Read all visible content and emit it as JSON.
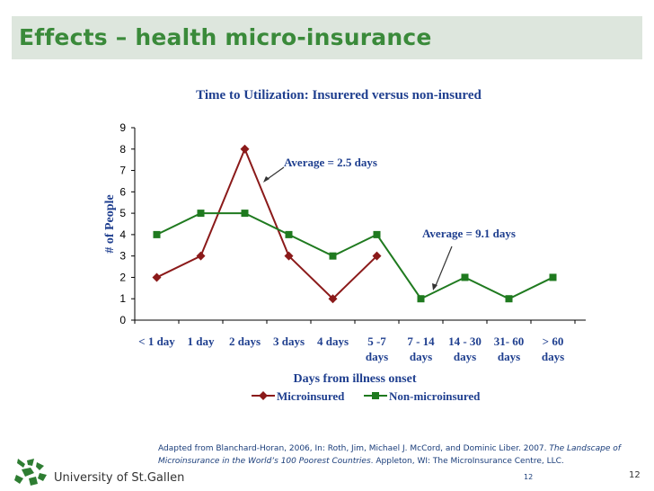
{
  "slide": {
    "title": "Effects – health micro-insurance",
    "citation_prefix": "Adapted from Blanchard-Horan, 2006, In: Roth, Jim, Michael J. McCord, and Dominic Liber. 2007.",
    "citation_title": "The Landscape of Microinsurance in the World’s 100 Poorest Countries",
    "citation_suffix": ". Appleton, WI: The MicroInsurance Centre, LLC.",
    "university": "University of St.Gallen",
    "page_small": "12",
    "page": "12"
  },
  "colors": {
    "title_green": "#3a8a3a",
    "micro": "#8b1a1a",
    "non_micro": "#1f7a1f",
    "text_blue": "#1f3f8f",
    "title_bar": "#dde6dd"
  },
  "chart_data": {
    "type": "line",
    "title": "Time to Utilization: Insurered versus non-insured",
    "xlabel": "Days from illness onset",
    "ylabel": "# of People",
    "ylim": [
      0,
      9
    ],
    "yticks": [
      "0",
      "1",
      "2",
      "3",
      "4",
      "5",
      "6",
      "7",
      "8",
      "9"
    ],
    "categories": [
      [
        "< 1 day"
      ],
      [
        "1 day"
      ],
      [
        "2 days"
      ],
      [
        "3 days"
      ],
      [
        "4 days"
      ],
      [
        "5 -7",
        "days"
      ],
      [
        "7 - 14",
        "days"
      ],
      [
        "14 - 30",
        "days"
      ],
      [
        "31- 60",
        "days"
      ],
      [
        "> 60",
        "days"
      ]
    ],
    "series": [
      {
        "name": "Microinsured",
        "marker": "diamond",
        "values": [
          2,
          3,
          8,
          3,
          1,
          3,
          null,
          null,
          null,
          null
        ]
      },
      {
        "name": "Non-microinsured",
        "marker": "square",
        "values": [
          4,
          5,
          5,
          4,
          3,
          4,
          1,
          2,
          1,
          2
        ]
      }
    ],
    "annotations": [
      {
        "text": "Average = 2.5 days",
        "series": 0
      },
      {
        "text": "Average = 9.1 days",
        "series": 1
      }
    ],
    "legend": "bottom",
    "grid": false
  }
}
